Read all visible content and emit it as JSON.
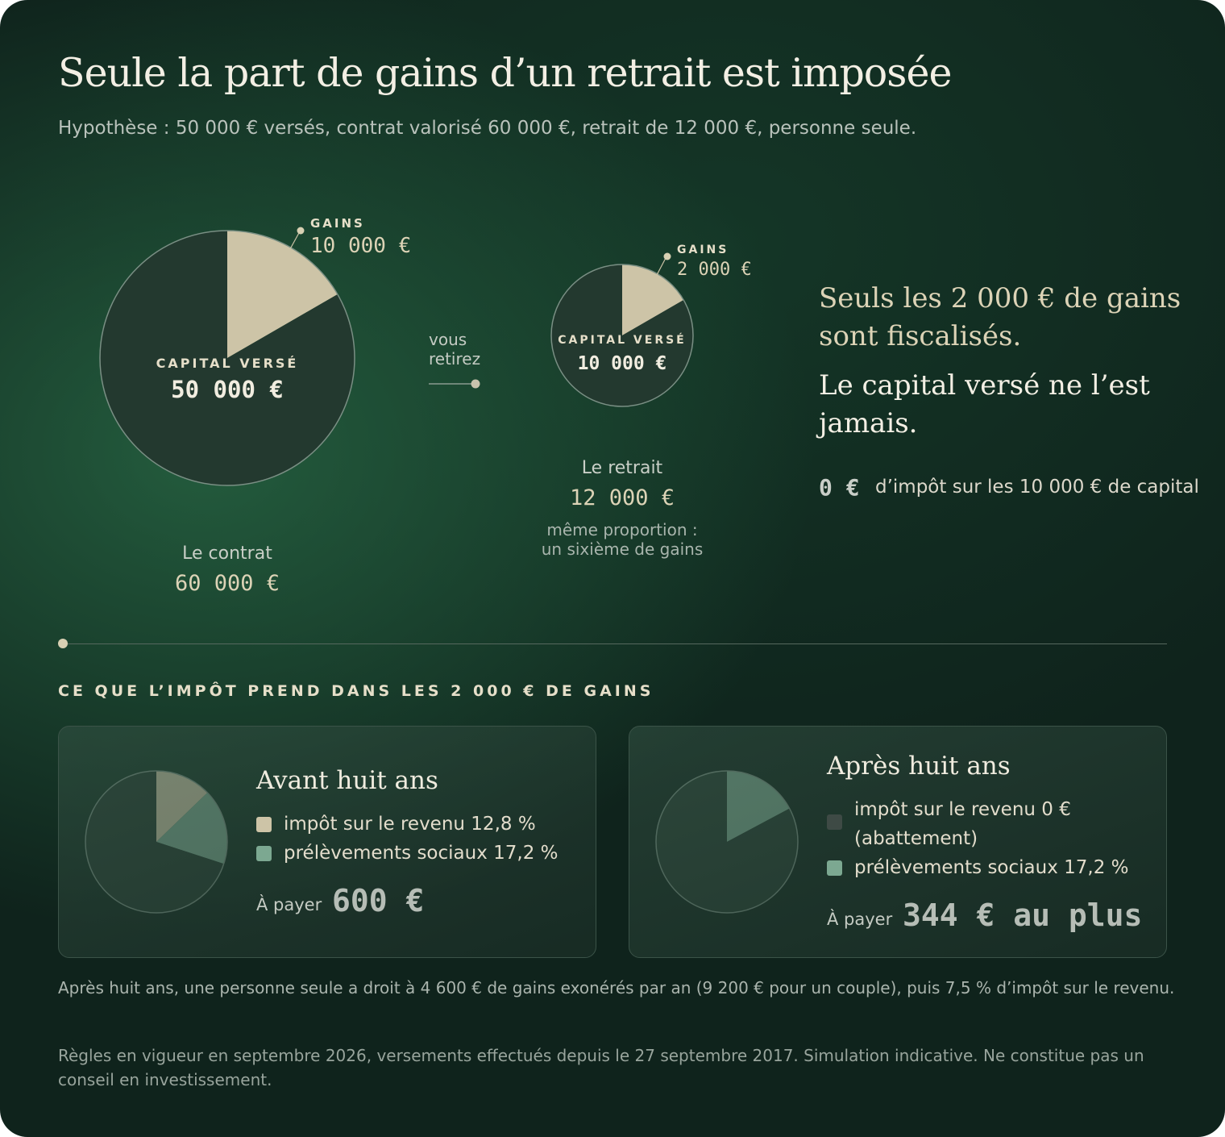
{
  "title": "Seule la part de gains d’un retrait est imposée",
  "subtitle": "Hypothèse : 50 000 € versés, contrat valorisé 60 000 €, retrait de 12 000 €, personne seule.",
  "colors": {
    "background": "#0f231c",
    "gains": "#cdc4a7",
    "capital": "#23392f",
    "social": "#7ca891",
    "zero_tax": "#3e4a45",
    "outline": "#7a8f84"
  },
  "chart_data": [
    {
      "type": "pie",
      "label": "Le contrat",
      "total": "60 000 €",
      "slices": [
        {
          "name": "GAINS",
          "value": 10000,
          "display": "10 000 €"
        },
        {
          "name": "CAPITAL VERSÉ",
          "value": 50000,
          "display": "50 000 €"
        }
      ]
    },
    {
      "type": "pie",
      "label": "Le retrait",
      "total": "12 000 €",
      "note": [
        "même proportion :",
        "un sixième de gains"
      ],
      "slices": [
        {
          "name": "GAINS",
          "value": 2000,
          "display": "2 000 €"
        },
        {
          "name": "CAPITAL VERSÉ",
          "value": 10000,
          "display": "10 000 €"
        }
      ]
    },
    {
      "type": "pie",
      "label": "Avant huit ans",
      "slices": [
        {
          "name": "impôt sur le revenu 12,8 %",
          "value": 12.8
        },
        {
          "name": "prélèvements sociaux 17,2 %",
          "value": 17.2
        },
        {
          "name": "reste",
          "value": 70
        }
      ]
    },
    {
      "type": "pie",
      "label": "Après huit ans",
      "slices": [
        {
          "name": "prélèvements sociaux 17,2 %",
          "value": 17.2
        },
        {
          "name": "reste",
          "value": 82.8
        }
      ]
    }
  ],
  "flow": {
    "arrow_label_1": "vous",
    "arrow_label_2": "retirez"
  },
  "contract": {
    "gains_label": "GAINS",
    "gains_value": "10 000 €",
    "capital_label": "CAPITAL VERSÉ",
    "capital_value": "50 000 €",
    "caption": "Le contrat",
    "total": "60 000 €"
  },
  "withdrawal": {
    "gains_label": "GAINS",
    "gains_value": "2 000 €",
    "capital_label": "CAPITAL VERSÉ",
    "capital_value": "10 000 €",
    "caption": "Le retrait",
    "total": "12 000 €",
    "note_line1": "même proportion :",
    "note_line2": "un sixième de gains"
  },
  "callout": {
    "line1": "Seuls les 2 000 € de gains",
    "line2": "sont fiscalisés.",
    "line3": "Le capital versé ne l’est",
    "line4": "jamais.",
    "zero_value": "0 €",
    "zero_text": "d’impôt sur les 10 000 € de capital"
  },
  "section_title": "CE QUE L’IMPÔT PREND DANS LES 2 000 € DE GAINS",
  "before": {
    "title": "Avant huit ans",
    "legend_ir": "impôt sur le revenu 12,8 %",
    "legend_ps": "prélèvements sociaux 17,2 %",
    "pay_label": "À payer",
    "pay_value": "600 €"
  },
  "after": {
    "title": "Après huit ans",
    "legend_ir_1": "impôt sur le revenu 0 €",
    "legend_ir_2": "(abattement)",
    "legend_ps": "prélèvements sociaux 17,2 %",
    "pay_label": "À payer",
    "pay_value": "344 € au plus"
  },
  "note": "Après huit ans, une personne seule a droit à 4 600 € de gains exonérés par an (9 200 € pour un couple), puis 7,5 % d’impôt sur le revenu.",
  "disclaimer_1": "Règles en vigueur en septembre 2026, versements effectués depuis le 27 septembre 2017. Simulation indicative. Ne constitue pas un",
  "disclaimer_2": "conseil en investissement."
}
